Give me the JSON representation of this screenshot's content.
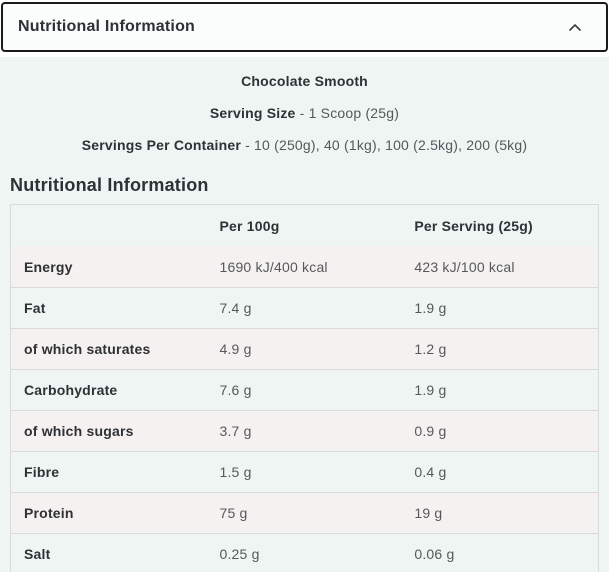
{
  "accordion": {
    "title": "Nutritional Information",
    "state": "expanded",
    "icon": "chevron-up"
  },
  "product": {
    "flavour": "Chocolate Smooth",
    "serving_size_label": "Serving Size",
    "serving_size_separator": " - ",
    "serving_size_value": "1 Scoop (25g)",
    "servings_label": "Servings Per Container",
    "servings_separator": " - ",
    "servings_value": "10 (250g), 40 (1kg), 100 (2.5kg), 200 (5kg)"
  },
  "table": {
    "heading": "Nutritional Information",
    "columns": [
      "",
      "Per 100g",
      "Per Serving (25g)"
    ],
    "rows": [
      {
        "label": "Energy",
        "per100": "1690 kJ/400 kcal",
        "perServing": "423 kJ/100 kcal"
      },
      {
        "label": "Fat",
        "per100": "7.4 g",
        "perServing": "1.9 g"
      },
      {
        "label": "of which saturates",
        "per100": "4.9 g",
        "perServing": "1.2 g"
      },
      {
        "label": "Carbohydrate",
        "per100": "7.6 g",
        "perServing": "1.9 g"
      },
      {
        "label": "of which sugars",
        "per100": "3.7 g",
        "perServing": "0.9 g"
      },
      {
        "label": "Fibre",
        "per100": "1.5 g",
        "perServing": "0.4 g"
      },
      {
        "label": "Protein",
        "per100": "75 g",
        "perServing": "19 g"
      },
      {
        "label": "Salt",
        "per100": "0.25 g",
        "perServing": "0.06 g"
      }
    ]
  },
  "colors": {
    "panel_background": "#eef5f2",
    "alt_row_tint": "#f5f1f0",
    "header_border": "#1a1a1a",
    "table_border": "#d8dbd9",
    "dark_text": "#2e3135",
    "gray_text": "#55585c"
  }
}
